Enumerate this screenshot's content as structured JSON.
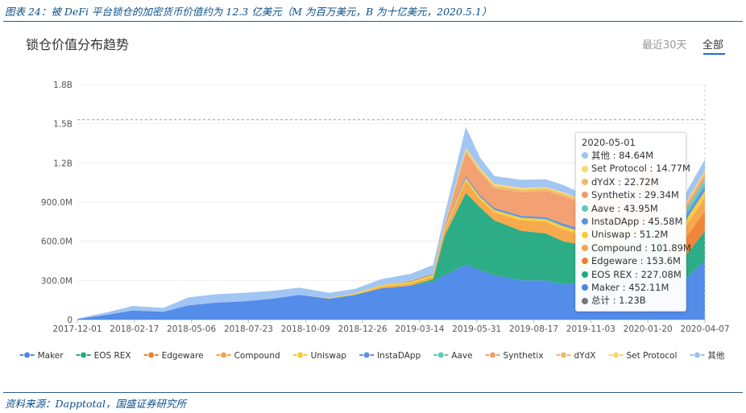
{
  "caption": "图表 24：被 DeFi 平台锁仓的加密货币价值约为 12.3 亿美元（M 为百万美元，B 为十亿美元，2020.5.1）",
  "source": "资料来源：Dapptotal，国盛证券研究所",
  "panel": {
    "title": "锁仓价值分布趋势"
  },
  "tabs": [
    {
      "label": "最近30天",
      "active": false
    },
    {
      "label": "全部",
      "active": true
    }
  ],
  "chart_data": {
    "type": "area",
    "stacked": true,
    "yaxis_ticks": [
      "0",
      "300.0M",
      "600.0M",
      "900.0M",
      "1.2B",
      "1.5B",
      "1.8B"
    ],
    "ylim": [
      0,
      1800
    ],
    "value_unit": "M USD",
    "marker_line_value": 1530,
    "x_tick_labels": [
      "2017-12-01",
      "2018-02-17",
      "2018-05-06",
      "2018-07-23",
      "2018-10-09",
      "2018-12-26",
      "2019-03-14",
      "2019-05-31",
      "2019-08-17",
      "2019-11-03",
      "2020-01-20",
      "2020-04-07"
    ],
    "x": [
      "2017-12-01",
      "2018-01-15",
      "2018-02-17",
      "2018-04-01",
      "2018-05-06",
      "2018-06-15",
      "2018-07-23",
      "2018-09-01",
      "2018-10-09",
      "2018-11-20",
      "2018-12-26",
      "2019-02-01",
      "2019-03-14",
      "2019-04-15",
      "2019-05-01",
      "2019-05-31",
      "2019-06-20",
      "2019-07-10",
      "2019-08-17",
      "2019-09-20",
      "2019-10-15",
      "2019-11-03",
      "2019-12-15",
      "2020-01-20",
      "2020-02-14",
      "2020-03-01",
      "2020-03-13",
      "2020-04-07",
      "2020-05-01"
    ],
    "series": [
      {
        "name": "Maker",
        "color": "#4a86e8",
        "values": [
          5,
          40,
          70,
          60,
          110,
          130,
          140,
          160,
          190,
          160,
          190,
          240,
          260,
          290,
          340,
          420,
          380,
          340,
          300,
          300,
          270,
          280,
          290,
          360,
          500,
          420,
          250,
          330,
          452.11
        ]
      },
      {
        "name": "EOS REX",
        "color": "#22a97f",
        "values": [
          0,
          0,
          0,
          0,
          0,
          0,
          0,
          0,
          0,
          0,
          0,
          0,
          0,
          20,
          300,
          550,
          480,
          420,
          380,
          360,
          330,
          300,
          280,
          250,
          260,
          240,
          170,
          180,
          227.08
        ]
      },
      {
        "name": "Edgeware",
        "color": "#f07e2e",
        "values": [
          0,
          0,
          0,
          0,
          0,
          0,
          0,
          0,
          0,
          0,
          0,
          0,
          0,
          0,
          0,
          0,
          0,
          0,
          0,
          0,
          0,
          0,
          0,
          0,
          0,
          0,
          0,
          140,
          153.6
        ]
      },
      {
        "name": "Compound",
        "color": "#f7a445",
        "values": [
          0,
          0,
          0,
          0,
          0,
          0,
          0,
          0,
          0,
          0,
          0,
          10,
          15,
          20,
          40,
          90,
          60,
          60,
          80,
          90,
          90,
          80,
          90,
          90,
          110,
          100,
          60,
          90,
          101.89
        ]
      },
      {
        "name": "Uniswap",
        "color": "#f5cc34",
        "values": [
          0,
          0,
          0,
          0,
          0,
          0,
          0,
          0,
          0,
          5,
          10,
          15,
          15,
          15,
          20,
          25,
          20,
          20,
          20,
          20,
          25,
          25,
          25,
          25,
          35,
          30,
          25,
          45,
          51.2
        ]
      },
      {
        "name": "InstaDApp",
        "color": "#5b8fe0",
        "values": [
          0,
          0,
          0,
          0,
          0,
          0,
          0,
          0,
          0,
          0,
          0,
          0,
          5,
          8,
          10,
          15,
          15,
          15,
          15,
          15,
          20,
          20,
          20,
          20,
          30,
          30,
          20,
          40,
          45.58
        ]
      },
      {
        "name": "Aave",
        "color": "#5ec9b7",
        "values": [
          0,
          0,
          0,
          0,
          0,
          0,
          0,
          0,
          0,
          0,
          0,
          0,
          0,
          0,
          0,
          0,
          0,
          0,
          0,
          0,
          0,
          0,
          0,
          0,
          10,
          15,
          15,
          40,
          43.95
        ]
      },
      {
        "name": "Synthetix",
        "color": "#f29b6b",
        "values": [
          0,
          0,
          0,
          0,
          0,
          0,
          0,
          0,
          0,
          0,
          0,
          0,
          0,
          0,
          5,
          180,
          170,
          150,
          180,
          200,
          210,
          200,
          190,
          200,
          260,
          180,
          80,
          25,
          29.34
        ]
      },
      {
        "name": "dYdX",
        "color": "#f0b968",
        "values": [
          0,
          0,
          0,
          0,
          0,
          0,
          0,
          0,
          0,
          0,
          0,
          0,
          5,
          5,
          10,
          20,
          20,
          20,
          20,
          20,
          20,
          20,
          20,
          20,
          30,
          25,
          15,
          20,
          22.72
        ]
      },
      {
        "name": "Set Protocol",
        "color": "#f8d96a",
        "values": [
          0,
          0,
          0,
          0,
          0,
          0,
          0,
          0,
          0,
          0,
          0,
          0,
          0,
          0,
          5,
          15,
          15,
          15,
          15,
          10,
          10,
          10,
          10,
          10,
          20,
          15,
          10,
          12,
          14.77
        ]
      },
      {
        "name": "其他",
        "color": "#9cc3f2",
        "values": [
          3,
          20,
          35,
          30,
          60,
          65,
          65,
          60,
          55,
          40,
          35,
          45,
          50,
          60,
          70,
          160,
          80,
          60,
          60,
          60,
          55,
          50,
          50,
          50,
          100,
          60,
          40,
          75,
          84.64
        ]
      }
    ],
    "legend_order": [
      "Maker",
      "EOS REX",
      "Edgeware",
      "Compound",
      "Uniswap",
      "InstaDApp",
      "Aave",
      "Synthetix",
      "dYdX",
      "Set Protocol",
      "其他"
    ],
    "tooltip": {
      "date": "2020-05-01",
      "rows": [
        {
          "label": "其他 : 84.64M",
          "color": "#9cc3f2"
        },
        {
          "label": "Set Protocol : 14.77M",
          "color": "#f8d96a"
        },
        {
          "label": "dYdX : 22.72M",
          "color": "#f0b968"
        },
        {
          "label": "Synthetix : 29.34M",
          "color": "#f29b6b"
        },
        {
          "label": "Aave : 43.95M",
          "color": "#5ec9b7"
        },
        {
          "label": "InstaDApp : 45.58M",
          "color": "#5b8fe0"
        },
        {
          "label": "Uniswap : 51.2M",
          "color": "#f5cc34"
        },
        {
          "label": "Compound : 101.89M",
          "color": "#f7a445"
        },
        {
          "label": "Edgeware : 153.6M",
          "color": "#f07e2e"
        },
        {
          "label": "EOS REX : 227.08M",
          "color": "#22a97f"
        },
        {
          "label": "Maker : 452.11M",
          "color": "#4a86e8"
        },
        {
          "label": "总计 : 1.23B",
          "color": "#777777"
        }
      ]
    }
  }
}
